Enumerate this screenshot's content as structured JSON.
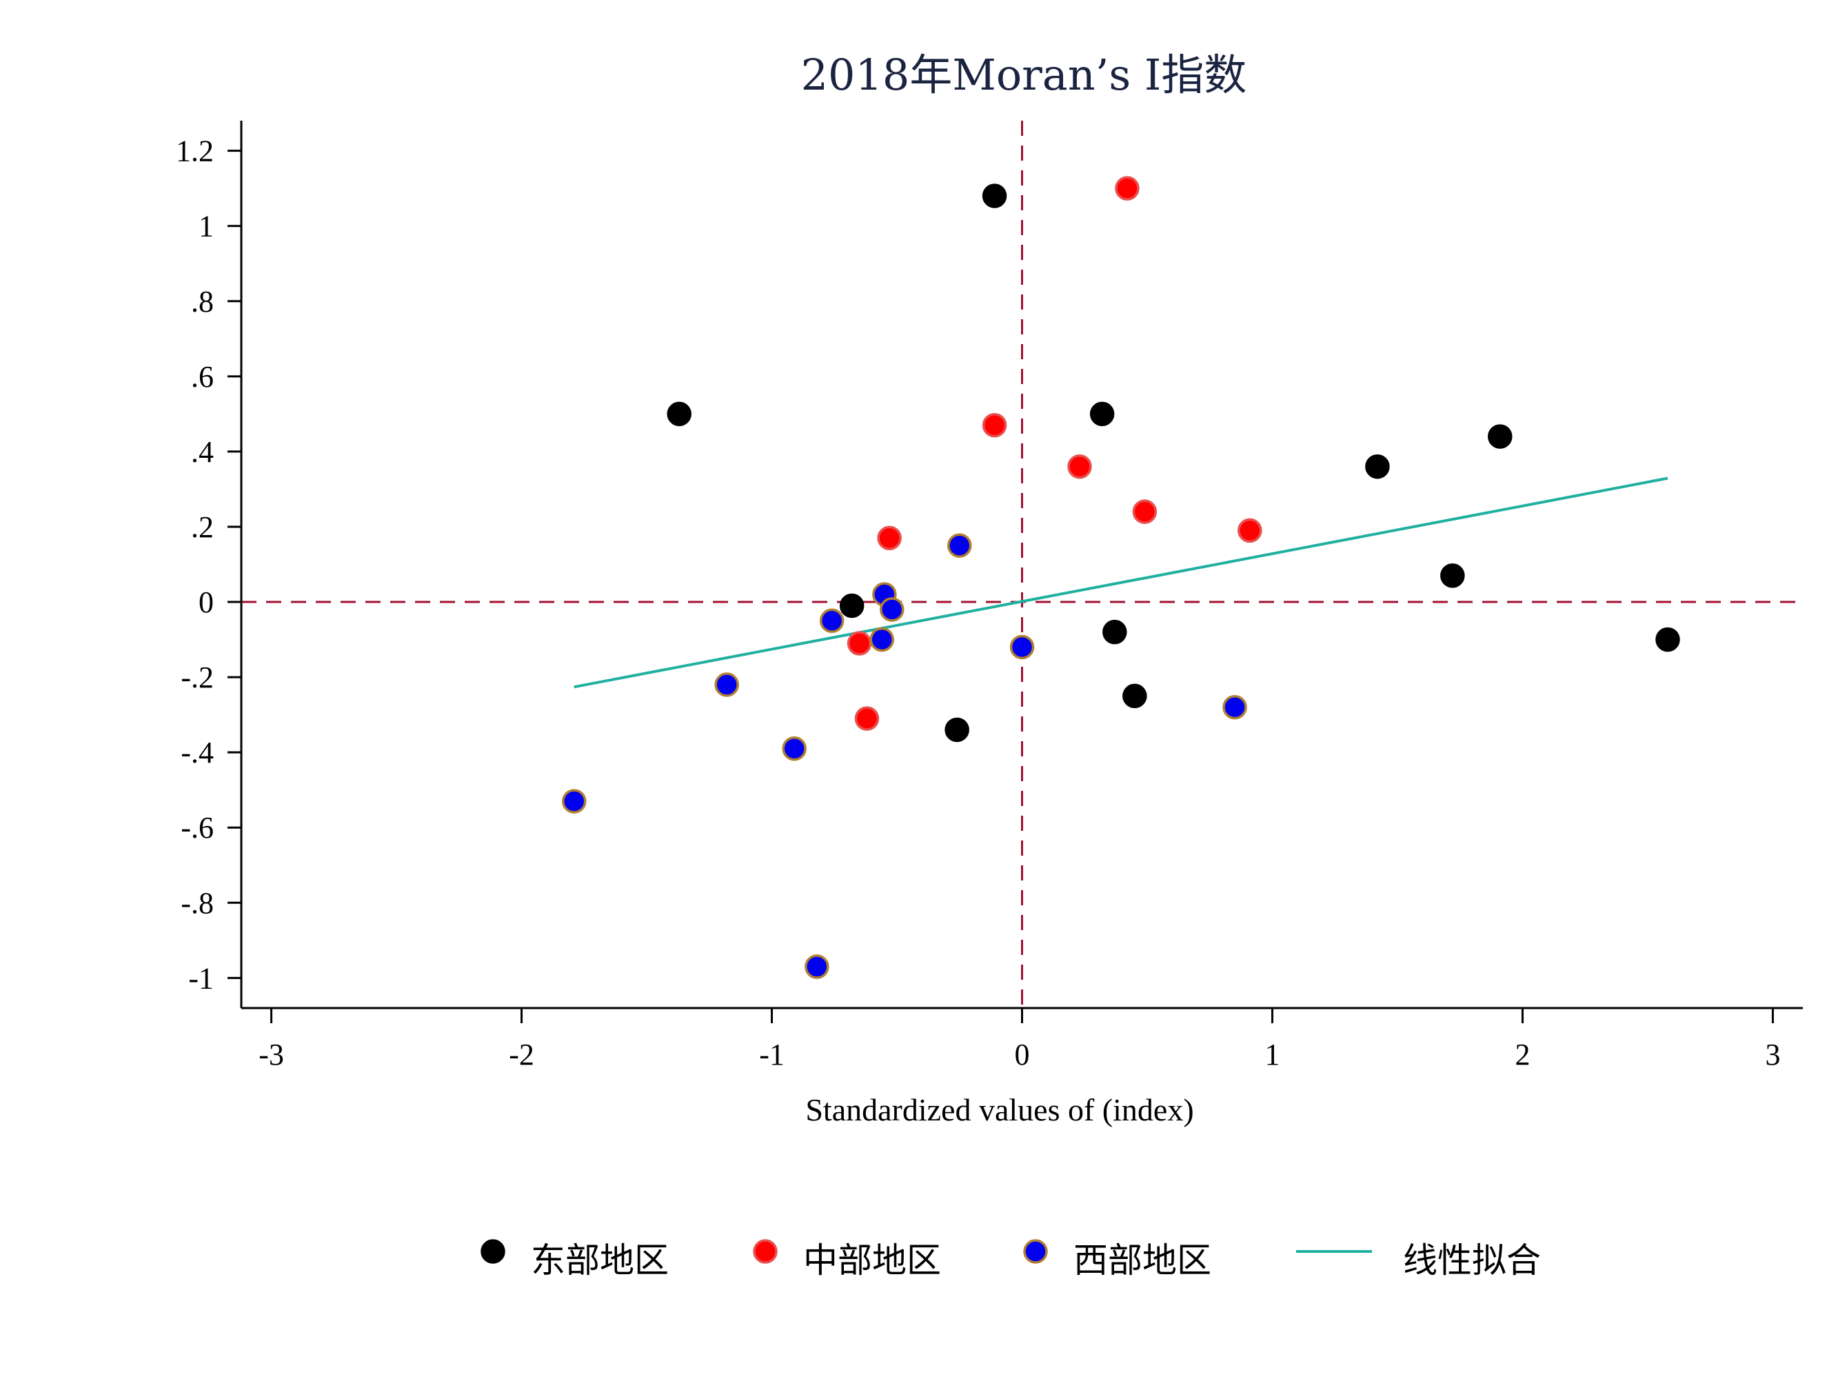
{
  "chart_data": {
    "type": "scatter",
    "title": "2018年Moran’s I指数",
    "xlabel": "Standardized values of (index)",
    "ylabel": "",
    "xlim": [
      -3.12,
      3.12
    ],
    "ylim": [
      -1.08,
      1.28
    ],
    "x_ticks": [
      -3,
      -2,
      -1,
      0,
      1,
      2,
      3
    ],
    "x_tick_labels": [
      "-3",
      "-2",
      "-1",
      "0",
      "1",
      "2",
      "3"
    ],
    "y_ticks": [
      1.2,
      1,
      0.8,
      0.6,
      0.4,
      0.2,
      0,
      -0.2,
      -0.4,
      -0.6,
      -0.8,
      -1
    ],
    "y_tick_labels": [
      "1.2",
      "1",
      ".8",
      ".6",
      ".4",
      ".2",
      "0",
      "-.2",
      "-.4",
      "-.6",
      "-.8",
      "-1"
    ],
    "reference_lines": {
      "x": 0,
      "y": 0,
      "color": "#a01030",
      "style": "dashed"
    },
    "grid": false,
    "legend_position": "bottom",
    "series": [
      {
        "name": "东部地区",
        "fill": "#000000",
        "stroke": "#000000",
        "points": [
          {
            "x": -0.11,
            "y": 1.08
          },
          {
            "x": -1.37,
            "y": 0.5
          },
          {
            "x": 0.32,
            "y": 0.5
          },
          {
            "x": 1.91,
            "y": 0.44
          },
          {
            "x": 1.42,
            "y": 0.36
          },
          {
            "x": 1.72,
            "y": 0.07
          },
          {
            "x": -0.68,
            "y": -0.01
          },
          {
            "x": 0.37,
            "y": -0.08
          },
          {
            "x": 2.58,
            "y": -0.1
          },
          {
            "x": 0.45,
            "y": -0.25
          },
          {
            "x": -0.26,
            "y": -0.34
          }
        ]
      },
      {
        "name": "中部地区",
        "fill": "#ff0000",
        "stroke": "#e85050",
        "points": [
          {
            "x": 0.42,
            "y": 1.1
          },
          {
            "x": -0.11,
            "y": 0.47
          },
          {
            "x": 0.23,
            "y": 0.36
          },
          {
            "x": 0.49,
            "y": 0.24
          },
          {
            "x": 0.91,
            "y": 0.19
          },
          {
            "x": -0.53,
            "y": 0.17
          },
          {
            "x": -0.65,
            "y": -0.11
          },
          {
            "x": -0.62,
            "y": -0.31
          }
        ]
      },
      {
        "name": "西部地区",
        "fill": "#0000ee",
        "stroke": "#b08030",
        "points": [
          {
            "x": -0.25,
            "y": 0.15
          },
          {
            "x": -0.55,
            "y": 0.02
          },
          {
            "x": -0.52,
            "y": -0.02
          },
          {
            "x": -0.76,
            "y": -0.05
          },
          {
            "x": -0.56,
            "y": -0.1
          },
          {
            "x": 0.0,
            "y": -0.12
          },
          {
            "x": -1.18,
            "y": -0.22
          },
          {
            "x": 0.85,
            "y": -0.28
          },
          {
            "x": -0.91,
            "y": -0.39
          },
          {
            "x": -1.79,
            "y": -0.53
          },
          {
            "x": -0.82,
            "y": -0.97
          }
        ]
      }
    ],
    "fit_line": {
      "name": "线性拟合",
      "color": "#20b0a0",
      "x": [
        -1.79,
        2.58
      ],
      "y": [
        -0.226,
        0.329
      ]
    }
  }
}
